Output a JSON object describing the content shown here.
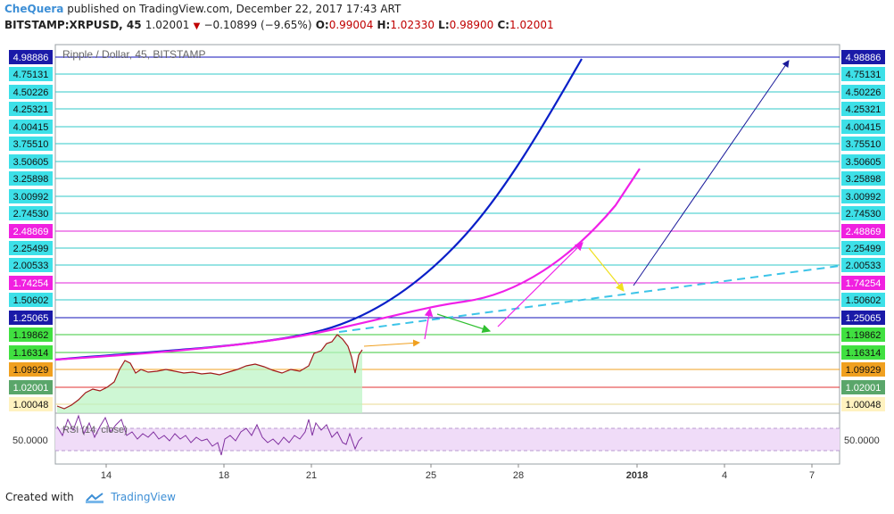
{
  "header": {
    "author": "CheQuera",
    "published_text": "published on TradingView.com, December 22, 2017 17:43 ART",
    "symbol": "BITSTAMP:XRPUSD, 45",
    "last": "1.02001",
    "change": "−0.10899 (−9.65%)",
    "o_label": "O:",
    "o_value": "0.99004",
    "h_label": "H:",
    "h_value": "1.02330",
    "l_label": "L:",
    "l_value": "0.98900",
    "c_label": "C:",
    "c_value": "1.02001"
  },
  "chart_title": "Ripple / Dollar, 45, BITSTAMP",
  "rsi_label": "RSI (14, close)",
  "rsi_axis_label": "50.0000",
  "footer": {
    "created_with": "Created with",
    "brand": "TradingView"
  },
  "colors": {
    "blue_curve": "#0a1fc8",
    "magenta_curve": "#f020e8",
    "dashed_trend": "#3cc4e8",
    "price_fill": "#b9f3c2",
    "price_line": "#b01d1d",
    "rsi_band": "#f0dcf8",
    "rsi_line": "#8030a0"
  },
  "chart_data": {
    "type": "line",
    "title": "Ripple / Dollar, 45, BITSTAMP",
    "y_scale": "log",
    "ylim": [
      1.0,
      4.98886
    ],
    "x_tick_labels": [
      "14",
      "18",
      "21",
      "25",
      "28",
      "2018",
      "4",
      "7"
    ],
    "price_levels": [
      {
        "label": "4.98886",
        "value": 4.98886,
        "color": "#1010b8",
        "tag_color": "#1a1aa8"
      },
      {
        "label": "4.75131",
        "value": 4.75131,
        "color": "#30c8c8",
        "tag_color": "#3de0e8"
      },
      {
        "label": "4.50226",
        "value": 4.50226,
        "color": "#30c8c8",
        "tag_color": "#3de0e8"
      },
      {
        "label": "4.25321",
        "value": 4.25321,
        "color": "#30c8c8",
        "tag_color": "#3de0e8"
      },
      {
        "label": "4.00415",
        "value": 4.00415,
        "color": "#30c8c8",
        "tag_color": "#3de0e8"
      },
      {
        "label": "3.75510",
        "value": 3.7551,
        "color": "#30c8c8",
        "tag_color": "#3de0e8"
      },
      {
        "label": "3.50605",
        "value": 3.50605,
        "color": "#30c8c8",
        "tag_color": "#3de0e8"
      },
      {
        "label": "3.25898",
        "value": 3.25898,
        "color": "#30c8c8",
        "tag_color": "#3de0e8"
      },
      {
        "label": "3.00992",
        "value": 3.00992,
        "color": "#30c8c8",
        "tag_color": "#3de0e8"
      },
      {
        "label": "2.74530",
        "value": 2.7453,
        "color": "#30c8c8",
        "tag_color": "#3de0e8"
      },
      {
        "label": "2.48869",
        "value": 2.48869,
        "color": "#e020d8",
        "tag_color": "#f020e0"
      },
      {
        "label": "2.25499",
        "value": 2.25499,
        "color": "#30c8c8",
        "tag_color": "#3de0e8"
      },
      {
        "label": "2.00533",
        "value": 2.00533,
        "color": "#30c8c8",
        "tag_color": "#3de0e8"
      },
      {
        "label": "1.74254",
        "value": 1.74254,
        "color": "#e020d8",
        "tag_color": "#f020e0"
      },
      {
        "label": "1.50602",
        "value": 1.50602,
        "color": "#30c8c8",
        "tag_color": "#3de0e8"
      },
      {
        "label": "1.25065",
        "value": 1.25065,
        "color": "#1010b8",
        "tag_color": "#1a1aa8"
      },
      {
        "label": "1.19862",
        "value": 1.19862,
        "color": "#38c838",
        "tag_color": "#40e040"
      },
      {
        "label": "1.16314",
        "value": 1.16314,
        "color": "#38c838",
        "tag_color": "#40e040"
      },
      {
        "label": "1.09929",
        "value": 1.09929,
        "color": "#f0a020",
        "tag_color": "#f0a020"
      },
      {
        "label": "1.02001",
        "value": 1.02001,
        "color": "#e03030",
        "tag_color": "#5aa66a"
      },
      {
        "label": "1.00048",
        "value": 1.00048,
        "color": "#e8d890",
        "tag_color": "#fff2c0"
      }
    ],
    "rsi": {
      "label": "RSI (14, close)",
      "ticks": [
        50
      ],
      "band": [
        30,
        70
      ]
    }
  }
}
